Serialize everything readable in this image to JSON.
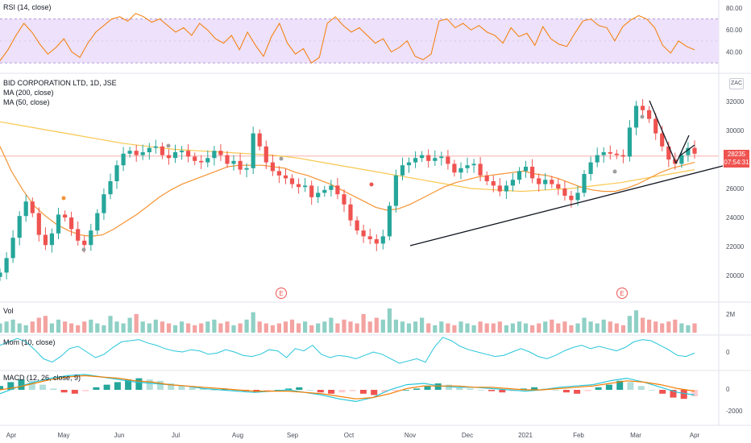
{
  "chart_data": {
    "type": "candlestick",
    "title": "BID CORPORATION LTD, 1D, JSE",
    "symbol_badge": "ZAC",
    "last_price": {
      "value": "28235",
      "countdown": "07:54:31",
      "color": "#ef5350"
    },
    "x_ticks": [
      "Apr",
      "May",
      "Jun",
      "Jul",
      "Aug",
      "Sep",
      "Oct",
      "Nov",
      "Dec",
      "2021",
      "Feb",
      "Mar",
      "Apr"
    ],
    "price_panel": {
      "ylim": [
        19000,
        33000
      ],
      "y_ticks": [
        "32000",
        "30000",
        "28000",
        "26000",
        "24000",
        "22000",
        "20000"
      ],
      "indicators": [
        "MA (200, close)",
        "MA (50, close)"
      ],
      "earnings_markers": [
        "E",
        "E"
      ],
      "series_colors": {
        "up": "#26a69a",
        "down": "#ef5350",
        "ma200": "#f9c74f",
        "ma50": "#f59331"
      },
      "close_series": [
        20200,
        21200,
        22600,
        24100,
        25100,
        24300,
        22800,
        22100,
        22900,
        24200,
        24000,
        23200,
        22400,
        22100,
        23100,
        24300,
        25600,
        26500,
        27600,
        28400,
        28600,
        28300,
        28500,
        28800,
        28900,
        28300,
        28100,
        28500,
        28600,
        28200,
        27900,
        27800,
        28100,
        28600,
        28300,
        27700,
        27900,
        27300,
        27400,
        29800,
        28900,
        27800,
        27200,
        26900,
        26700,
        26300,
        26100,
        26200,
        25400,
        25700,
        25900,
        26200,
        25600,
        24900,
        23800,
        23100,
        22700,
        22500,
        22200,
        22700,
        24800,
        26900,
        27600,
        27800,
        28100,
        28300,
        27900,
        28100,
        28200,
        27700,
        27100,
        27400,
        27600,
        27700,
        26900,
        26500,
        26200,
        25800,
        26200,
        26600,
        27200,
        27500,
        26700,
        26300,
        26600,
        26300,
        26000,
        25500,
        25200,
        25700,
        27000,
        27800,
        28300,
        28500,
        28400,
        28300,
        28200,
        30200,
        31700,
        31400,
        30800,
        29800,
        28900,
        28000,
        27700,
        28300,
        28800,
        28400
      ],
      "ma50_series": [
        28900,
        27200,
        25900,
        24800,
        24100,
        23500,
        23100,
        22800,
        22700,
        22800,
        23200,
        23700,
        24200,
        24800,
        25400,
        25900,
        26300,
        26600,
        26900,
        27200,
        27500,
        27600,
        27600,
        27600,
        27500,
        27400,
        27100,
        26900,
        26600,
        26300,
        25900,
        25500,
        25100,
        24700,
        24500,
        24600,
        24900,
        25300,
        25700,
        26100,
        26400,
        26600,
        26800,
        26900,
        27000,
        27100,
        27200,
        27000,
        26900,
        26700,
        26400,
        26100,
        25900,
        25800,
        25800,
        26000,
        26300,
        26700,
        27100,
        27400,
        27600,
        27800
      ],
      "ma200_series": [
        30600,
        30300,
        30000,
        29700,
        29400,
        29100,
        28900,
        28700,
        28600,
        28500,
        28400,
        28300,
        28100,
        27800,
        27500,
        27200,
        26900,
        26600,
        26300,
        26000,
        25900,
        25800,
        25900,
        26000,
        26200,
        26400,
        26700,
        27000,
        27300
      ],
      "trendline": {
        "from": [
          "Nov",
          22100
        ],
        "to": [
          "Apr",
          27400
        ]
      }
    },
    "volume_panel": {
      "label": "Vol",
      "y_ticks": [
        "2M"
      ],
      "values": [
        0.5,
        0.6,
        0.7,
        0.5,
        0.4,
        0.6,
        0.8,
        0.9,
        0.5,
        0.7,
        0.6,
        0.5,
        0.4,
        0.6,
        0.7,
        0.5,
        0.4,
        0.9,
        0.6,
        0.5,
        0.8,
        1.0,
        0.6,
        0.5,
        0.7,
        0.6,
        0.5,
        0.4,
        0.6,
        0.5,
        0.4,
        0.5,
        0.6,
        0.7,
        0.5,
        0.6,
        0.4,
        0.5,
        0.7,
        1.1,
        0.6,
        0.5,
        0.4,
        0.5,
        0.6,
        0.7,
        0.5,
        0.6,
        0.4,
        0.5,
        0.6,
        0.8,
        0.5,
        0.7,
        0.6,
        0.5,
        1.0,
        0.6,
        0.8,
        0.7,
        1.3,
        0.7,
        0.6,
        0.5,
        0.6,
        0.8,
        0.5,
        0.4,
        0.6,
        0.5,
        0.4,
        0.6,
        0.5,
        0.4,
        0.6,
        0.5,
        0.5,
        0.6,
        0.4,
        0.5,
        0.6,
        0.5,
        0.4,
        0.5,
        0.6,
        0.7,
        0.5,
        0.6,
        0.4,
        0.5,
        0.8,
        0.6,
        0.5,
        0.7,
        0.6,
        0.5,
        0.4,
        0.9,
        1.2,
        0.8,
        0.7,
        0.6,
        0.5,
        0.6,
        0.7,
        0.5,
        0.4,
        0.5
      ]
    },
    "momentum_panel": {
      "label": "Mom (10, close)",
      "y_ticks": [
        "0"
      ],
      "values": [
        0.6,
        0.9,
        1.2,
        0.9,
        0.2,
        -0.6,
        -0.9,
        -0.4,
        0.3,
        0.5,
        0.0,
        -0.5,
        -0.2,
        0.4,
        0.9,
        1.0,
        1.1,
        0.8,
        0.6,
        0.3,
        0.1,
        0.0,
        0.2,
        0.1,
        -0.2,
        -0.1,
        0.2,
        0.0,
        -0.3,
        -0.4,
        -0.2,
        0.2,
        0.1,
        -0.5,
        0.3,
        0.1,
        0.6,
        -0.2,
        -0.5,
        -0.3,
        -0.4,
        -0.6,
        -0.3,
        0.0,
        -0.2,
        -0.6,
        -1.0,
        -0.8,
        -0.6,
        -0.9,
        0.4,
        1.3,
        1.0,
        0.5,
        0.2,
        0.0,
        -0.2,
        -0.4,
        -0.3,
        0.0,
        0.3,
        0.0,
        -0.4,
        -0.6,
        -0.3,
        0.1,
        0.4,
        0.6,
        0.3,
        0.5,
        0.3,
        0.1,
        0.4,
        0.9,
        1.1,
        1.0,
        0.6,
        0.2,
        -0.3,
        -0.4,
        -0.1
      ]
    },
    "macd_panel": {
      "label": "MACD (12, 26, close, 9)",
      "y_ticks": [
        "0",
        "-2000"
      ],
      "macd_color": "#26c6da",
      "signal_color": "#f57c00",
      "histogram": [
        0.3,
        0.6,
        0.8,
        0.7,
        0.4,
        0.1,
        -0.2,
        -0.3,
        -0.1,
        0.2,
        0.4,
        0.6,
        0.8,
        0.9,
        0.8,
        0.7,
        0.5,
        0.3,
        0.2,
        0.1,
        0.0,
        0.1,
        0.0,
        -0.1,
        -0.2,
        -0.1,
        0.0,
        0.1,
        0.2,
        0.0,
        -0.2,
        -0.3,
        -0.2,
        -0.1,
        -0.3,
        -0.4,
        -0.2,
        -0.1,
        0.0,
        0.1,
        0.3,
        0.5,
        0.4,
        0.2,
        0.1,
        0.0,
        -0.1,
        -0.2,
        -0.1,
        0.1,
        0.2,
        0.1,
        0.0,
        -0.2,
        -0.3,
        -0.1,
        0.2,
        0.4,
        0.7,
        0.6,
        0.3,
        0.0,
        -0.3,
        -0.6,
        -0.7,
        -0.5
      ],
      "macd": [
        -0.3,
        0.2,
        0.6,
        0.9,
        1.1,
        1.2,
        1.0,
        0.8,
        0.6,
        0.5,
        0.4,
        0.3,
        0.1,
        0.0,
        -0.1,
        -0.2,
        -0.1,
        0.0,
        -0.2,
        -0.4,
        -0.7,
        -0.9,
        -0.6,
        0.0,
        0.4,
        0.5,
        0.3,
        0.2,
        0.2,
        0.1,
        0.0,
        -0.1,
        0.0,
        0.2,
        0.3,
        0.4,
        0.7,
        0.9,
        0.6,
        0.2,
        -0.2,
        -0.4
      ],
      "signal": [
        0.0,
        0.2,
        0.5,
        0.8,
        1.0,
        1.1,
        1.0,
        0.9,
        0.7,
        0.6,
        0.4,
        0.3,
        0.2,
        0.1,
        0.0,
        -0.1,
        -0.1,
        -0.1,
        -0.2,
        -0.3,
        -0.5,
        -0.7,
        -0.6,
        -0.3,
        0.1,
        0.3,
        0.3,
        0.3,
        0.2,
        0.2,
        0.1,
        0.0,
        0.0,
        0.1,
        0.2,
        0.3,
        0.5,
        0.7,
        0.6,
        0.4,
        0.1,
        -0.1
      ]
    },
    "rsi_panel": {
      "label": "RSI (14, close)",
      "y_ticks": [
        "80.00",
        "60.00",
        "40.00"
      ],
      "band": [
        30,
        70
      ],
      "line_color": "#f57c00",
      "band_fill": "#ede1fb",
      "values": [
        32,
        42,
        55,
        66,
        58,
        47,
        38,
        44,
        52,
        40,
        35,
        48,
        58,
        64,
        70,
        72,
        68,
        75,
        72,
        67,
        70,
        64,
        58,
        62,
        55,
        66,
        60,
        52,
        48,
        55,
        42,
        58,
        46,
        36,
        54,
        66,
        48,
        38,
        43,
        30,
        35,
        66,
        72,
        64,
        58,
        62,
        55,
        48,
        52,
        40,
        44,
        50,
        36,
        33,
        38,
        68,
        70,
        62,
        66,
        60,
        64,
        58,
        55,
        48,
        62,
        54,
        57,
        46,
        63,
        52,
        47,
        45,
        57,
        68,
        70,
        64,
        62,
        50,
        63,
        69,
        73,
        70,
        62,
        46,
        39,
        50,
        45,
        42
      ]
    }
  }
}
